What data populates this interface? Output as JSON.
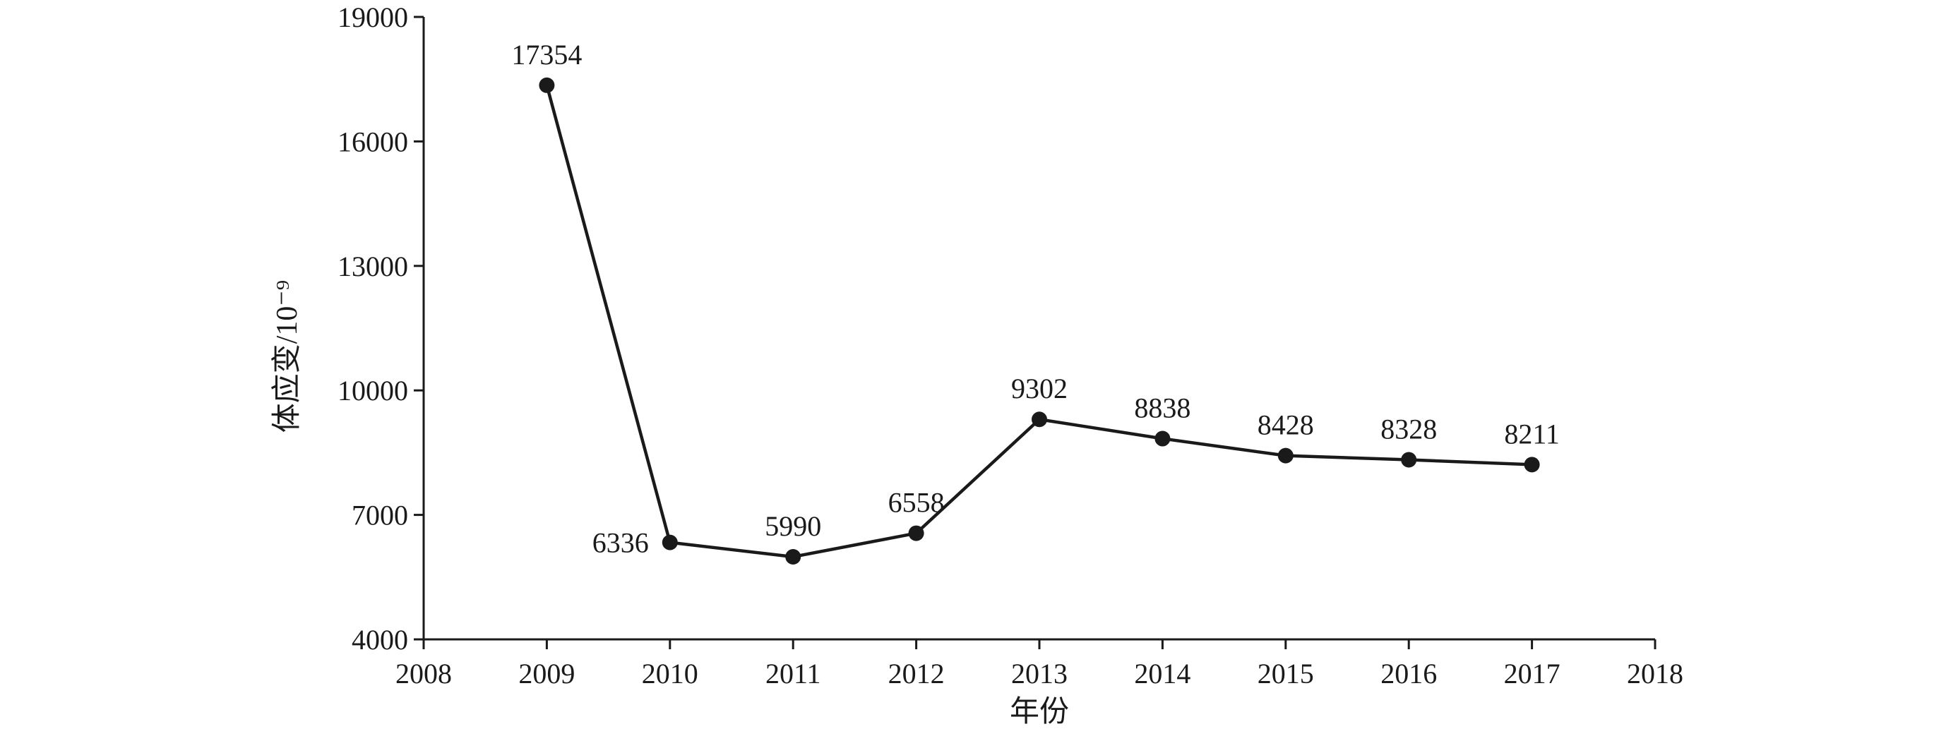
{
  "chart_data": {
    "type": "line",
    "xlabel": "年份",
    "ylabel": "体应变/10⁻⁹",
    "xlim": [
      2008,
      2018
    ],
    "ylim": [
      4000,
      19000
    ],
    "x_ticks": [
      2008,
      2009,
      2010,
      2011,
      2012,
      2013,
      2014,
      2015,
      2016,
      2017,
      2018
    ],
    "y_ticks": [
      4000,
      7000,
      10000,
      13000,
      16000,
      19000
    ],
    "grid": false,
    "series": [
      {
        "x": [
          2009,
          2010,
          2011,
          2012,
          2013,
          2014,
          2015,
          2016,
          2017
        ],
        "values": [
          17354,
          6336,
          5990,
          6558,
          9302,
          8838,
          8428,
          8328,
          8211
        ],
        "data_labels": [
          "17354",
          "6336",
          "5990",
          "6558",
          "9302",
          "8838",
          "8428",
          "8328",
          "8211"
        ]
      }
    ]
  }
}
